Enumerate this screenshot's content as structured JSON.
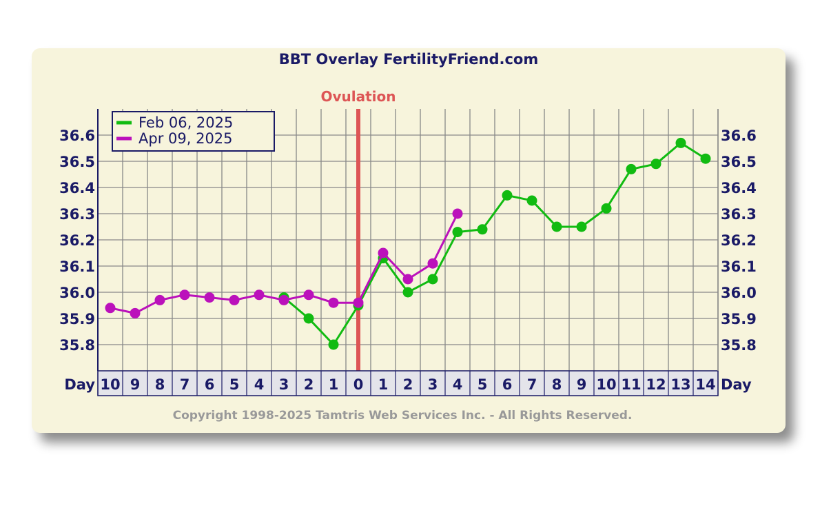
{
  "page": {
    "heading_partial": ""
  },
  "chart_data": {
    "type": "line",
    "title": "BBT Overlay FertilityFriend.com",
    "ovulation_label": "Ovulation",
    "ovulation_day": 0,
    "x_axis_label": "Day",
    "x": [
      -10,
      -9,
      -8,
      -7,
      -6,
      -5,
      -4,
      -3,
      -2,
      -1,
      0,
      1,
      2,
      3,
      4,
      5,
      6,
      7,
      8,
      9,
      10,
      11,
      12,
      13,
      14
    ],
    "x_tick_labels": [
      "10",
      "9",
      "8",
      "7",
      "6",
      "5",
      "4",
      "3",
      "2",
      "1",
      "0",
      "1",
      "2",
      "3",
      "4",
      "5",
      "6",
      "7",
      "8",
      "9",
      "10",
      "11",
      "12",
      "13",
      "14"
    ],
    "ylim": [
      35.7,
      36.7
    ],
    "y_ticks": [
      35.8,
      35.9,
      36.0,
      36.1,
      36.2,
      36.3,
      36.4,
      36.5,
      36.6
    ],
    "y_tick_labels": [
      "35.8",
      "35.9",
      "36.0",
      "36.1",
      "36.2",
      "36.3",
      "36.4",
      "36.5",
      "36.6"
    ],
    "grid": true,
    "legend_position": "top-left",
    "series": [
      {
        "name": "Feb 06, 2025",
        "color": "#11bb11",
        "x": [
          -3,
          -2,
          -1,
          0,
          1,
          2,
          3,
          4,
          5,
          6,
          7,
          8,
          9,
          10,
          11,
          12,
          13,
          14
        ],
        "values": [
          35.98,
          35.9,
          35.8,
          35.95,
          36.13,
          36.0,
          36.05,
          36.23,
          36.24,
          36.37,
          36.35,
          36.25,
          36.25,
          36.32,
          36.47,
          36.49,
          36.57,
          36.51
        ]
      },
      {
        "name": "Apr 09, 2025",
        "color": "#bb11bb",
        "x": [
          -10,
          -9,
          -8,
          -7,
          -6,
          -5,
          -4,
          -3,
          -2,
          -1,
          0,
          1,
          2,
          3,
          4
        ],
        "values": [
          35.94,
          35.92,
          35.97,
          35.99,
          35.98,
          35.97,
          35.99,
          35.97,
          35.99,
          35.96,
          35.96,
          36.15,
          36.05,
          36.11,
          36.3
        ]
      }
    ],
    "copyright": "Copyright 1998-2025 Tamtris Web Services Inc. - All Rights Reserved."
  },
  "colors": {
    "background": "#f7f4dc",
    "axis_text": "#1a1a66",
    "grid": "#888888",
    "ovulation_line": "#dd5555",
    "copyright_text": "#999999",
    "day_cell_bg": "#e4e4ea"
  }
}
